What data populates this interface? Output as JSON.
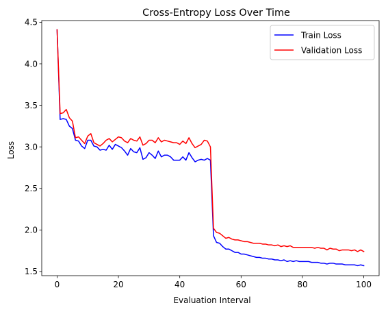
{
  "chart_data": {
    "type": "line",
    "title": "Cross-Entropy Loss Over Time",
    "xlabel": "Evaluation Interval",
    "ylabel": "Loss",
    "xlim": [
      -5,
      105
    ],
    "ylim": [
      1.45,
      4.52
    ],
    "xticks": [
      0,
      20,
      40,
      60,
      80,
      100
    ],
    "yticks": [
      1.5,
      2.0,
      2.5,
      3.0,
      3.5,
      4.0,
      4.5
    ],
    "xtick_labels": [
      "0",
      "20",
      "40",
      "60",
      "80",
      "100"
    ],
    "ytick_labels": [
      "1.5",
      "2.0",
      "2.5",
      "3.0",
      "3.5",
      "4.0",
      "4.5"
    ],
    "grid": false,
    "legend_position": "top-right",
    "series": [
      {
        "name": "Train Loss",
        "color": "#0000ff",
        "x": [
          0,
          1,
          2,
          3,
          4,
          5,
          6,
          7,
          8,
          9,
          10,
          11,
          12,
          13,
          14,
          15,
          16,
          17,
          18,
          19,
          20,
          21,
          22,
          23,
          24,
          25,
          26,
          27,
          28,
          29,
          30,
          31,
          32,
          33,
          34,
          35,
          36,
          37,
          38,
          39,
          40,
          41,
          42,
          43,
          44,
          45,
          46,
          47,
          48,
          49,
          50,
          51,
          52,
          53,
          54,
          55,
          56,
          57,
          58,
          59,
          60,
          61,
          62,
          63,
          64,
          65,
          66,
          67,
          68,
          69,
          70,
          71,
          72,
          73,
          74,
          75,
          76,
          77,
          78,
          79,
          80,
          81,
          82,
          83,
          84,
          85,
          86,
          87,
          88,
          89,
          90,
          91,
          92,
          93,
          94,
          95,
          96,
          97,
          98,
          99,
          100
        ],
        "values": [
          4.41,
          3.33,
          3.34,
          3.33,
          3.25,
          3.22,
          3.08,
          3.07,
          3.01,
          2.98,
          3.08,
          3.08,
          3.01,
          3.0,
          2.96,
          2.97,
          2.96,
          3.02,
          2.97,
          3.03,
          3.01,
          2.99,
          2.95,
          2.9,
          2.98,
          2.94,
          2.93,
          2.99,
          2.85,
          2.87,
          2.93,
          2.9,
          2.86,
          2.95,
          2.88,
          2.9,
          2.9,
          2.88,
          2.84,
          2.84,
          2.84,
          2.88,
          2.84,
          2.93,
          2.87,
          2.82,
          2.84,
          2.85,
          2.84,
          2.86,
          2.84,
          1.93,
          1.85,
          1.84,
          1.8,
          1.77,
          1.77,
          1.75,
          1.73,
          1.73,
          1.71,
          1.71,
          1.7,
          1.69,
          1.68,
          1.67,
          1.67,
          1.66,
          1.66,
          1.65,
          1.65,
          1.64,
          1.64,
          1.63,
          1.64,
          1.62,
          1.63,
          1.62,
          1.63,
          1.62,
          1.62,
          1.62,
          1.62,
          1.61,
          1.61,
          1.61,
          1.6,
          1.6,
          1.59,
          1.6,
          1.6,
          1.59,
          1.59,
          1.59,
          1.58,
          1.58,
          1.58,
          1.58,
          1.57,
          1.58,
          1.57
        ]
      },
      {
        "name": "Validation Loss",
        "color": "#ff0000",
        "x": [
          0,
          1,
          2,
          3,
          4,
          5,
          6,
          7,
          8,
          9,
          10,
          11,
          12,
          13,
          14,
          15,
          16,
          17,
          18,
          19,
          20,
          21,
          22,
          23,
          24,
          25,
          26,
          27,
          28,
          29,
          30,
          31,
          32,
          33,
          34,
          35,
          36,
          37,
          38,
          39,
          40,
          41,
          42,
          43,
          44,
          45,
          46,
          47,
          48,
          49,
          50,
          51,
          52,
          53,
          54,
          55,
          56,
          57,
          58,
          59,
          60,
          61,
          62,
          63,
          64,
          65,
          66,
          67,
          68,
          69,
          70,
          71,
          72,
          73,
          74,
          75,
          76,
          77,
          78,
          79,
          80,
          81,
          82,
          83,
          84,
          85,
          86,
          87,
          88,
          89,
          90,
          91,
          92,
          93,
          94,
          95,
          96,
          97,
          98,
          99,
          100
        ],
        "values": [
          4.41,
          3.4,
          3.41,
          3.45,
          3.35,
          3.31,
          3.11,
          3.12,
          3.08,
          3.04,
          3.13,
          3.16,
          3.05,
          3.03,
          3.01,
          3.04,
          3.08,
          3.1,
          3.06,
          3.09,
          3.12,
          3.11,
          3.07,
          3.05,
          3.1,
          3.08,
          3.07,
          3.12,
          3.02,
          3.04,
          3.08,
          3.08,
          3.05,
          3.11,
          3.06,
          3.08,
          3.07,
          3.06,
          3.05,
          3.05,
          3.03,
          3.07,
          3.04,
          3.11,
          3.04,
          2.99,
          3.01,
          3.03,
          3.08,
          3.07,
          3.0,
          2.02,
          1.97,
          1.96,
          1.93,
          1.9,
          1.91,
          1.89,
          1.88,
          1.88,
          1.87,
          1.86,
          1.86,
          1.85,
          1.84,
          1.84,
          1.84,
          1.83,
          1.83,
          1.82,
          1.82,
          1.81,
          1.82,
          1.8,
          1.81,
          1.8,
          1.81,
          1.79,
          1.79,
          1.79,
          1.79,
          1.79,
          1.79,
          1.79,
          1.78,
          1.79,
          1.78,
          1.78,
          1.76,
          1.78,
          1.77,
          1.77,
          1.75,
          1.76,
          1.76,
          1.76,
          1.75,
          1.76,
          1.74,
          1.76,
          1.74
        ]
      }
    ]
  }
}
